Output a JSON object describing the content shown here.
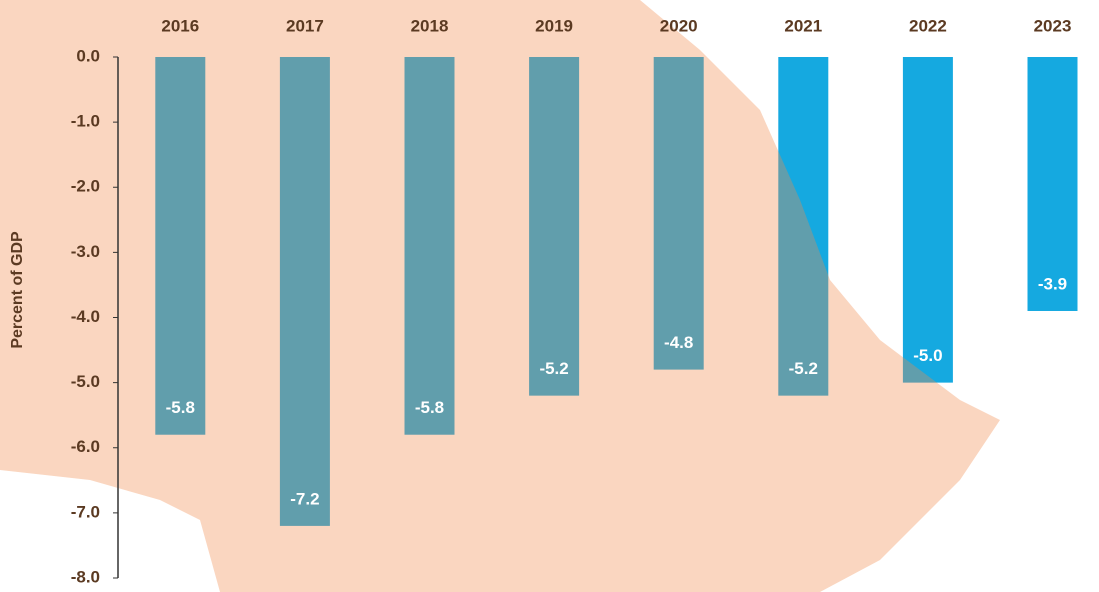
{
  "chart_data": {
    "type": "bar",
    "y_axis_label": "Percent of GDP",
    "categories": [
      "2016",
      "2017",
      "2018",
      "2019",
      "2020",
      "2021",
      "2022",
      "2023"
    ],
    "values": [
      -5.8,
      -7.2,
      -5.8,
      -5.2,
      -4.8,
      -5.2,
      -5.0,
      -3.9
    ],
    "value_labels": [
      "-5.8",
      "-7.2",
      "-5.8",
      "-5.2",
      "-4.8",
      "-5.2",
      "-5.0",
      "-3.9"
    ],
    "color": "#15a9e0",
    "ylim": [
      -8,
      0
    ],
    "yticks": [
      {
        "value": 0,
        "label": "0.0"
      },
      {
        "value": -1,
        "label": "-1.0"
      },
      {
        "value": -2,
        "label": "-2.0"
      },
      {
        "value": -3,
        "label": "-3.0"
      },
      {
        "value": -4,
        "label": "-4.0"
      },
      {
        "value": -5,
        "label": "-5.0"
      },
      {
        "value": -6,
        "label": "-6.0"
      },
      {
        "value": -7,
        "label": "-7.0"
      },
      {
        "value": -8,
        "label": "-8.0"
      }
    ],
    "grid": false
  }
}
